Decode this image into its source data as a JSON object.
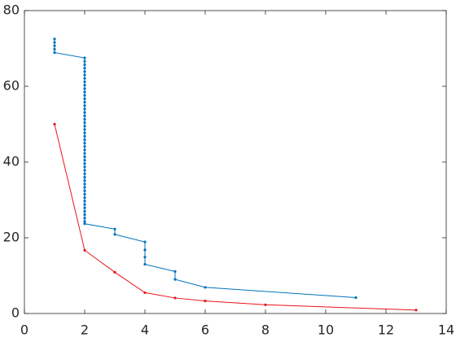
{
  "chart_data": {
    "type": "line",
    "xlim": [
      0,
      14
    ],
    "xticks": [
      0,
      2,
      4,
      6,
      8,
      10,
      12,
      14
    ],
    "ylim": [
      0,
      80
    ],
    "yticks": [
      0,
      20,
      40,
      60,
      80
    ],
    "grid": false,
    "series": [
      {
        "color": "#0072bd",
        "x": [
          1,
          1,
          1,
          1,
          1,
          2,
          2,
          2,
          2,
          2,
          2,
          2,
          2,
          2,
          2,
          2,
          2,
          2,
          2,
          2,
          2,
          2,
          2,
          2,
          2,
          2,
          2,
          2,
          2,
          2,
          2,
          2,
          2,
          2,
          2,
          2,
          2,
          2,
          2,
          2,
          2,
          2,
          2,
          2,
          2,
          2,
          2,
          2,
          2,
          2,
          2,
          2,
          2,
          2,
          2,
          3,
          3,
          4,
          4,
          4,
          4,
          5,
          5,
          6,
          11
        ],
        "values": [
          72.5,
          71.6,
          70.7,
          69.8,
          68.9,
          67.5,
          66.6,
          65.7,
          64.8,
          63.9,
          63.0,
          62.1,
          61.2,
          60.3,
          59.4,
          58.5,
          57.6,
          56.7,
          55.8,
          54.9,
          54.0,
          53.1,
          52.2,
          51.3,
          50.4,
          49.5,
          48.6,
          47.7,
          46.8,
          45.9,
          45.0,
          44.1,
          43.2,
          42.3,
          41.4,
          40.5,
          39.6,
          38.7,
          37.8,
          36.9,
          36.0,
          35.1,
          34.2,
          33.3,
          32.4,
          31.5,
          30.6,
          29.7,
          28.8,
          27.9,
          27.0,
          26.1,
          25.2,
          24.3,
          23.7,
          22.3,
          20.9,
          18.9,
          16.8,
          14.9,
          13.0,
          11.1,
          9.0,
          6.9,
          4.2
        ]
      },
      {
        "color": "#e8141a",
        "x": [
          1,
          2,
          3,
          4,
          5,
          6,
          8,
          13
        ],
        "values": [
          50,
          16.7,
          10.9,
          5.5,
          4.1,
          3.3,
          2.3,
          0.9
        ]
      }
    ]
  }
}
